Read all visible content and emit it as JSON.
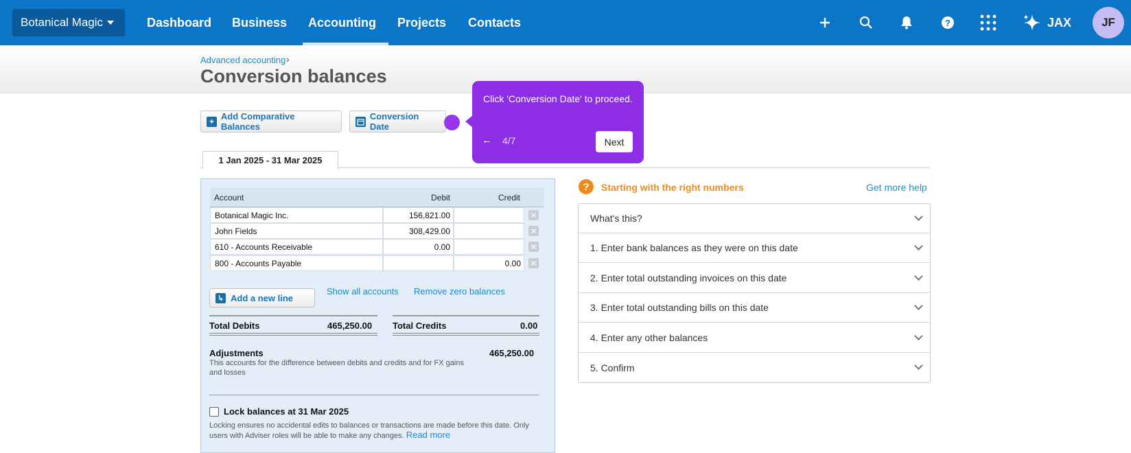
{
  "nav": {
    "org_name": "Botanical Magic",
    "items": [
      "Dashboard",
      "Business",
      "Accounting",
      "Projects",
      "Contacts"
    ],
    "active": "Accounting",
    "icons": [
      "plus-icon",
      "search-icon",
      "bell-icon",
      "help-icon",
      "apps-grid-icon"
    ],
    "jax_label": "JAX",
    "avatar_initials": "JF"
  },
  "header": {
    "breadcrumb": "Advanced accounting",
    "breadcrumb_sep": "›",
    "title": "Conversion balances"
  },
  "toolbar": {
    "add_comparative": "Add Comparative Balances",
    "conversion_date": "Conversion Date"
  },
  "tab": {
    "label": "1 Jan 2025 - 31 Mar 2025"
  },
  "table": {
    "columns": [
      "Account",
      "Debit",
      "Credit"
    ],
    "rows": [
      {
        "account": "Botanical Magic Inc.",
        "debit": "156,821.00",
        "credit": ""
      },
      {
        "account": "John Fields",
        "debit": "308,429.00",
        "credit": ""
      },
      {
        "account": "610 - Accounts Receivable",
        "debit": "0.00",
        "credit": ""
      },
      {
        "account": "800 - Accounts Payable",
        "debit": "",
        "credit": "0.00"
      }
    ]
  },
  "actions": {
    "add_line": "Add a new line",
    "show_all": "Show all accounts",
    "remove_zero": "Remove zero balances"
  },
  "totals": {
    "debits_label": "Total Debits",
    "debits_value": "465,250.00",
    "credits_label": "Total Credits",
    "credits_value": "0.00",
    "adjustments_label": "Adjustments",
    "adjustments_value": "465,250.00",
    "adjustments_desc": "This accounts for the difference between debits and credits and for FX gains and losses"
  },
  "lock": {
    "label": "Lock balances at 31 Mar 2025",
    "desc": "Locking ensures no accidental edits to balances or transactions are made before this date. Only users with Adviser roles will be able to make any changes.",
    "read_more": "Read more"
  },
  "help": {
    "title": "Starting with the right numbers",
    "more": "Get more help",
    "items": [
      "What's this?",
      "1. Enter bank balances as they were on this date",
      "2. Enter total outstanding invoices on this date",
      "3. Enter total outstanding bills on this date",
      "4. Enter any other balances",
      "5. Confirm"
    ]
  },
  "tour": {
    "text": "Click 'Conversion Date' to proceed.",
    "back": "←",
    "step": "4/7",
    "next": "Next"
  },
  "colors": {
    "nav_bg": "#0b76c8",
    "accent_orange": "#f08a16",
    "tour_purple": "#8e2de6",
    "link_blue": "#1a8cc7"
  }
}
